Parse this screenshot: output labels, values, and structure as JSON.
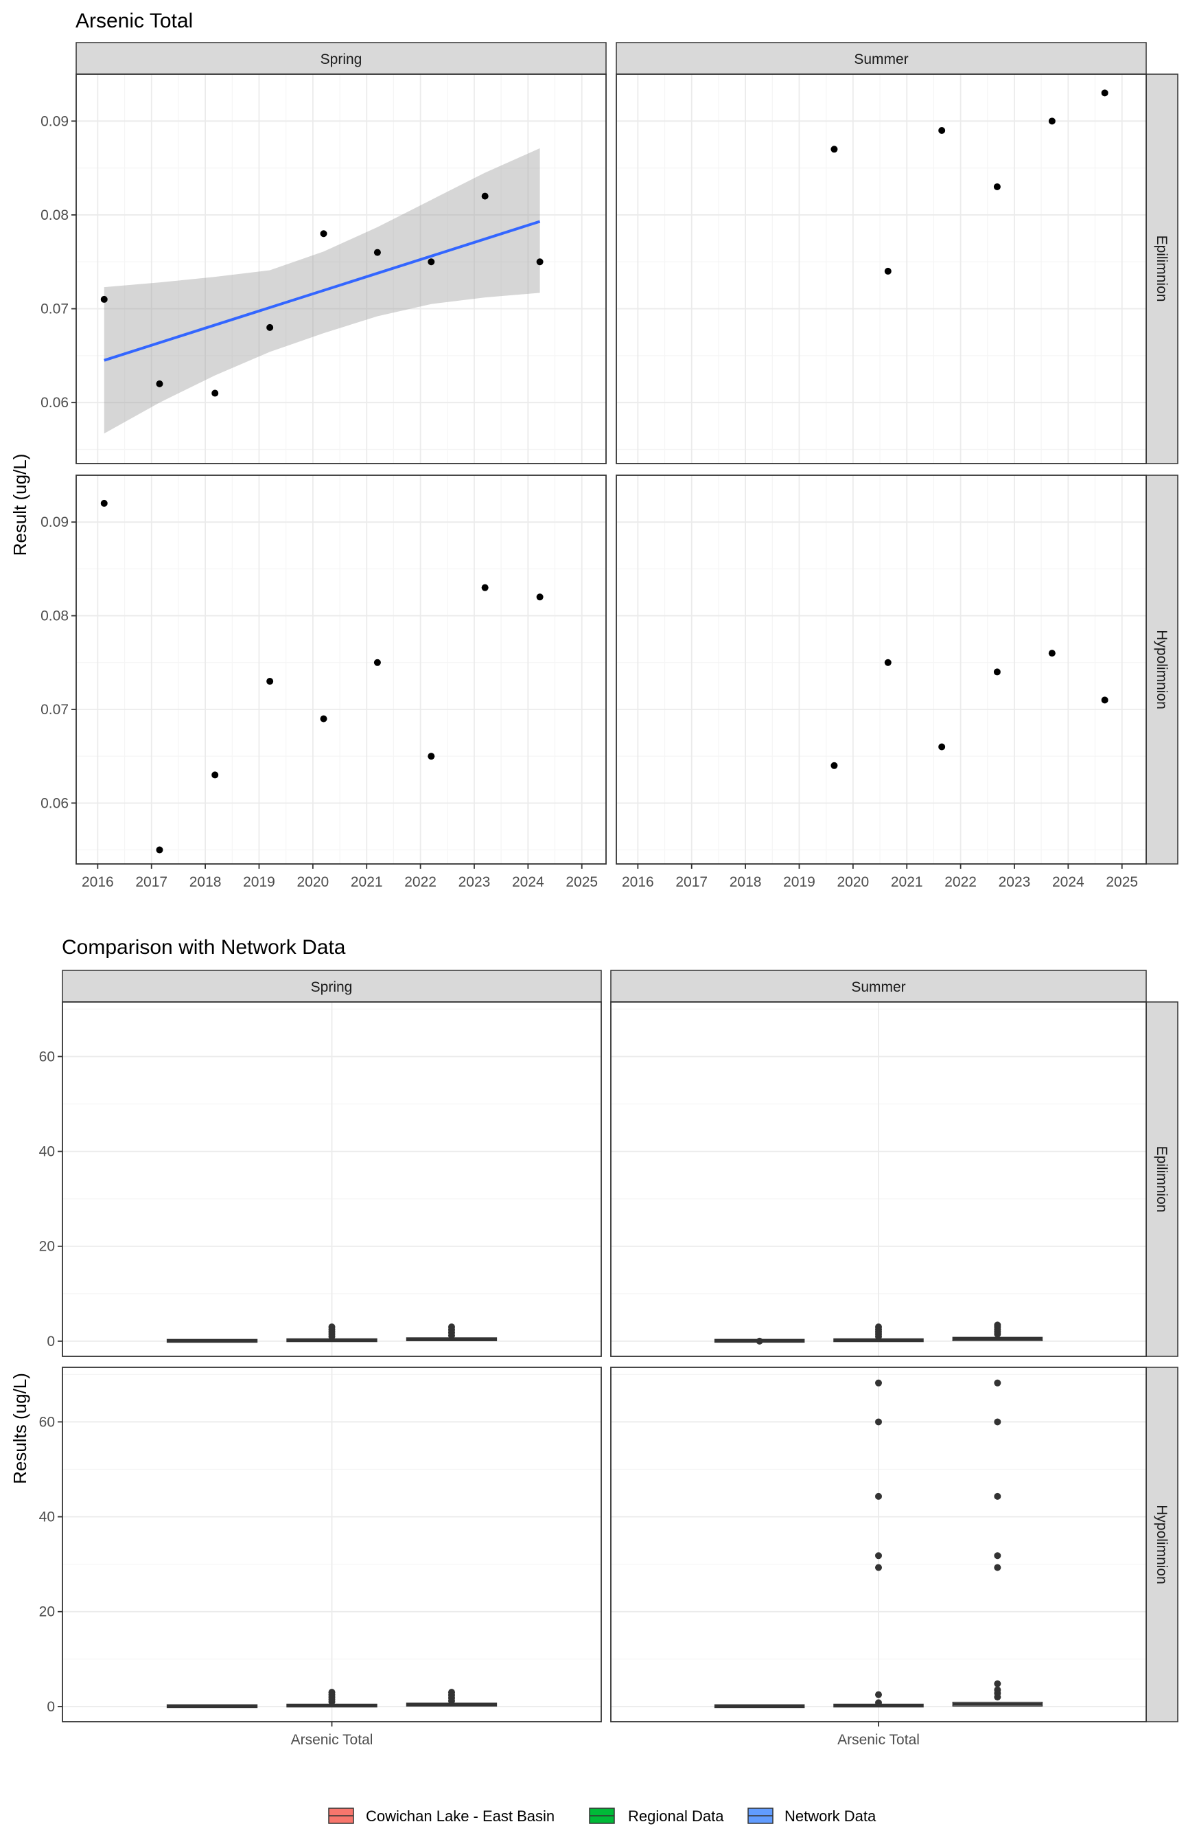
{
  "chart_data": [
    {
      "type": "scatter",
      "title": "Arsenic Total",
      "ylabel": "Result (ug/L)",
      "xlabel": "",
      "x_ticks": [
        "2016",
        "2017",
        "2018",
        "2019",
        "2020",
        "2021",
        "2022",
        "2023",
        "2024",
        "2025"
      ],
      "y_ticks": [
        "0.06",
        "0.07",
        "0.08",
        "0.09"
      ],
      "xlim": [
        2015.6,
        2025.45
      ],
      "ylim": [
        0.0535,
        0.095
      ],
      "grid": true,
      "facet_columns": [
        "Spring",
        "Summer"
      ],
      "facet_rows": [
        "Epilimnion",
        "Hypolimnion"
      ],
      "panels": [
        {
          "column": "Spring",
          "row": "Epilimnion",
          "points": [
            [
              2016.12,
              0.071
            ],
            [
              2017.15,
              0.062
            ],
            [
              2018.18,
              0.061
            ],
            [
              2019.2,
              0.068
            ],
            [
              2020.2,
              0.078
            ],
            [
              2021.2,
              0.076
            ],
            [
              2022.2,
              0.075
            ],
            [
              2023.2,
              0.082
            ],
            [
              2024.22,
              0.075
            ]
          ],
          "trend": {
            "type": "linear",
            "color": "#3366ff",
            "x": [
              2016.12,
              2024.22
            ],
            "y": [
              0.0645,
              0.0793
            ]
          },
          "confidence_band": {
            "x": [
              2016.12,
              2017.15,
              2018.18,
              2019.2,
              2020.2,
              2021.2,
              2022.2,
              2023.2,
              2024.22
            ],
            "lower": [
              0.0567,
              0.06,
              0.0629,
              0.0654,
              0.0674,
              0.0692,
              0.0705,
              0.0712,
              0.0717
            ],
            "upper": [
              0.0723,
              0.0728,
              0.0734,
              0.0741,
              0.0761,
              0.0787,
              0.0816,
              0.0845,
              0.0871
            ]
          }
        },
        {
          "column": "Summer",
          "row": "Epilimnion",
          "points": [
            [
              2019.65,
              0.087
            ],
            [
              2020.65,
              0.074
            ],
            [
              2021.65,
              0.089
            ],
            [
              2022.68,
              0.083
            ],
            [
              2023.7,
              0.09
            ],
            [
              2024.68,
              0.093
            ]
          ]
        },
        {
          "column": "Spring",
          "row": "Hypolimnion",
          "points": [
            [
              2016.12,
              0.092
            ],
            [
              2017.15,
              0.055
            ],
            [
              2018.18,
              0.063
            ],
            [
              2019.2,
              0.073
            ],
            [
              2020.2,
              0.069
            ],
            [
              2021.2,
              0.075
            ],
            [
              2022.2,
              0.065
            ],
            [
              2023.2,
              0.083
            ],
            [
              2024.22,
              0.082
            ]
          ]
        },
        {
          "column": "Summer",
          "row": "Hypolimnion",
          "points": [
            [
              2019.65,
              0.064
            ],
            [
              2020.65,
              0.075
            ],
            [
              2021.65,
              0.066
            ],
            [
              2022.68,
              0.074
            ],
            [
              2023.7,
              0.076
            ],
            [
              2024.68,
              0.071
            ]
          ]
        }
      ]
    },
    {
      "type": "box",
      "title": "Comparison with Network Data",
      "ylabel": "Results (ug/L)",
      "xlabel": "",
      "categories": [
        "Arsenic Total"
      ],
      "y_ticks": [
        "0",
        "20",
        "40",
        "60"
      ],
      "ylim": [
        -3.2,
        71.5
      ],
      "grid": true,
      "facet_columns": [
        "Spring",
        "Summer"
      ],
      "facet_rows": [
        "Epilimnion",
        "Hypolimnion"
      ],
      "legend": {
        "position": "bottom",
        "items": [
          {
            "label": "Cowichan Lake - East Basin",
            "color": "#f8766d"
          },
          {
            "label": "Regional Data",
            "color": "#00ba38"
          },
          {
            "label": "Network Data",
            "color": "#619cff"
          }
        ]
      },
      "panels": [
        {
          "column": "Spring",
          "row": "Epilimnion",
          "series": [
            {
              "name": "Cowichan Lake - East Basin",
              "median": 0.07,
              "q1": 0.06,
              "q3": 0.08,
              "outliers": []
            },
            {
              "name": "Regional Data",
              "median": 0.2,
              "q1": 0.05,
              "q3": 0.4,
              "outliers": [
                1.0,
                1.5,
                2.0,
                2.5,
                3.0
              ]
            },
            {
              "name": "Network Data",
              "median": 0.4,
              "q1": 0.1,
              "q3": 0.7,
              "outliers": [
                1.2,
                1.8,
                2.4,
                3.0
              ]
            }
          ]
        },
        {
          "column": "Summer",
          "row": "Epilimnion",
          "series": [
            {
              "name": "Cowichan Lake - East Basin",
              "median": 0.08,
              "q1": 0.07,
              "q3": 0.09,
              "outliers": [
                0.0
              ]
            },
            {
              "name": "Regional Data",
              "median": 0.2,
              "q1": 0.05,
              "q3": 0.4,
              "outliers": [
                1.0,
                1.5,
                2.0,
                2.5,
                3.0
              ]
            },
            {
              "name": "Network Data",
              "median": 0.5,
              "q1": 0.1,
              "q3": 0.8,
              "outliers": [
                1.5,
                2.0,
                2.5,
                3.0,
                3.4
              ]
            }
          ]
        },
        {
          "column": "Spring",
          "row": "Hypolimnion",
          "series": [
            {
              "name": "Cowichan Lake - East Basin",
              "median": 0.07,
              "q1": 0.06,
              "q3": 0.08,
              "outliers": []
            },
            {
              "name": "Regional Data",
              "median": 0.2,
              "q1": 0.05,
              "q3": 0.4,
              "outliers": [
                1.0,
                1.5,
                2.0,
                2.5,
                3.0
              ]
            },
            {
              "name": "Network Data",
              "median": 0.4,
              "q1": 0.1,
              "q3": 0.7,
              "outliers": [
                1.2,
                1.8,
                2.4,
                3.0
              ]
            }
          ]
        },
        {
          "column": "Summer",
          "row": "Hypolimnion",
          "series": [
            {
              "name": "Cowichan Lake - East Basin",
              "median": 0.07,
              "q1": 0.06,
              "q3": 0.08,
              "outliers": []
            },
            {
              "name": "Regional Data",
              "median": 0.2,
              "q1": 0.05,
              "q3": 0.4,
              "outliers": [
                0.8,
                2.5,
                29.3,
                31.8,
                44.3,
                60.0,
                68.2
              ]
            },
            {
              "name": "Network Data",
              "median": 0.5,
              "q1": 0.1,
              "q3": 0.9,
              "outliers": [
                2.0,
                2.8,
                3.5,
                4.8,
                29.3,
                31.8,
                44.3,
                60.0,
                68.2
              ]
            }
          ]
        }
      ]
    }
  ]
}
